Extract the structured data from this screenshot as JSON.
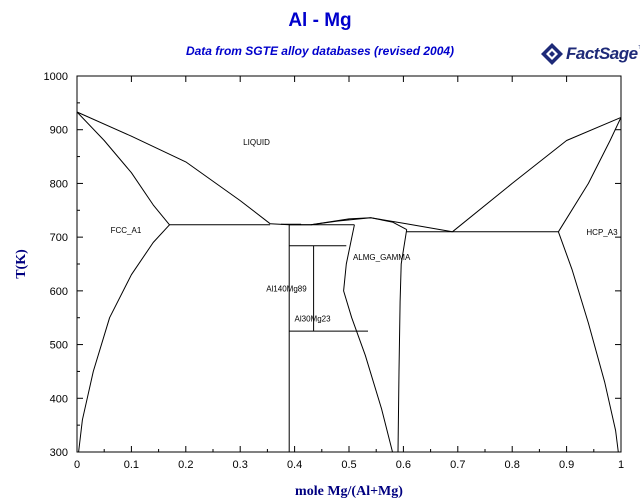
{
  "header": {
    "title": "Al - Mg",
    "subtitle": "Data from SGTE alloy databases (revised 2004)",
    "logo_text": "FactSage",
    "logo_sup": "™"
  },
  "colors": {
    "title": "#0000cc",
    "axis_label": "#000080",
    "lines": "#000000",
    "logo": "#1e2a78"
  },
  "chart_data": {
    "type": "line",
    "title": "Al - Mg",
    "subtitle": "Data from SGTE alloy databases (revised 2004)",
    "xlabel": "mole Mg/(Al+Mg)",
    "ylabel": "T(K)",
    "xlim": [
      0,
      1
    ],
    "ylim": [
      300,
      1000
    ],
    "xticks": [
      0,
      0.1,
      0.2,
      0.3,
      0.4,
      0.5,
      0.6,
      0.7,
      0.8,
      0.9,
      1
    ],
    "xtick_labels": [
      "0",
      "0.1",
      "0.2",
      "0.3",
      "0.4",
      "0.5",
      "0.6",
      "0.7",
      "0.8",
      "0.9",
      "1"
    ],
    "yticks": [
      300,
      400,
      500,
      600,
      700,
      800,
      900,
      1000
    ],
    "ytick_labels": [
      "300",
      "400",
      "500",
      "600",
      "700",
      "800",
      "900",
      "1000"
    ],
    "grid": false,
    "phase_labels": [
      {
        "text": "LIQUID",
        "x": 0.33,
        "y": 872
      },
      {
        "text": "FCC_A1",
        "x": 0.09,
        "y": 708
      },
      {
        "text": "HCP_A3",
        "x": 0.965,
        "y": 704
      },
      {
        "text": "ALMG_GAMMA",
        "x": 0.56,
        "y": 657
      },
      {
        "text": "Al140Mg89",
        "x": 0.385,
        "y": 599
      },
      {
        "text": "Al30Mg23",
        "x": 0.433,
        "y": 543
      }
    ],
    "series": [
      {
        "values": [
          [
            0,
            933
          ],
          [
            0.05,
            880
          ],
          [
            0.1,
            820
          ],
          [
            0.14,
            760
          ],
          [
            0.17,
            723
          ]
        ]
      },
      {
        "values": [
          [
            0,
            933
          ],
          [
            0.1,
            888
          ],
          [
            0.2,
            840
          ],
          [
            0.3,
            768
          ],
          [
            0.355,
            725
          ]
        ]
      },
      {
        "values": [
          [
            0.17,
            723
          ],
          [
            0.14,
            690
          ],
          [
            0.1,
            630
          ],
          [
            0.06,
            550
          ],
          [
            0.03,
            450
          ],
          [
            0.01,
            360
          ],
          [
            0.003,
            300
          ]
        ]
      },
      {
        "values": [
          [
            0.17,
            723
          ],
          [
            0.355,
            723
          ]
        ]
      },
      {
        "values": [
          [
            0.375,
            724
          ],
          [
            0.412,
            724
          ]
        ]
      },
      {
        "values": [
          [
            0.355,
            725
          ],
          [
            0.39,
            723
          ],
          [
            0.43,
            723
          ],
          [
            0.48,
            730
          ],
          [
            0.54,
            736
          ],
          [
            0.6,
            726
          ],
          [
            0.69,
            710
          ]
        ]
      },
      {
        "values": [
          [
            0.43,
            723
          ],
          [
            0.5,
            734
          ],
          [
            0.54,
            736
          ],
          [
            0.58,
            728
          ],
          [
            0.606,
            714
          ]
        ]
      },
      {
        "values": [
          [
            0.39,
            723
          ],
          [
            0.51,
            723
          ]
        ]
      },
      {
        "values": [
          [
            0.39,
            723
          ],
          [
            0.39,
            300
          ]
        ]
      },
      {
        "values": [
          [
            0.39,
            684
          ],
          [
            0.495,
            684
          ]
        ]
      },
      {
        "values": [
          [
            0.435,
            684
          ],
          [
            0.435,
            525
          ]
        ]
      },
      {
        "values": [
          [
            0.39,
            525
          ],
          [
            0.535,
            525
          ]
        ]
      },
      {
        "values": [
          [
            0.51,
            723
          ],
          [
            0.495,
            650
          ],
          [
            0.49,
            600
          ],
          [
            0.505,
            550
          ],
          [
            0.53,
            480
          ],
          [
            0.56,
            380
          ],
          [
            0.58,
            300
          ]
        ]
      },
      {
        "values": [
          [
            0.606,
            714
          ],
          [
            0.596,
            650
          ],
          [
            0.594,
            580
          ],
          [
            0.592,
            450
          ],
          [
            0.59,
            300
          ]
        ]
      },
      {
        "values": [
          [
            0.606,
            710
          ],
          [
            0.885,
            710
          ]
        ]
      },
      {
        "values": [
          [
            0.69,
            710
          ],
          [
            0.8,
            800
          ],
          [
            0.9,
            880
          ],
          [
            1,
            923
          ]
        ]
      },
      {
        "values": [
          [
            0.885,
            710
          ],
          [
            0.94,
            800
          ],
          [
            0.98,
            880
          ],
          [
            1,
            923
          ]
        ]
      },
      {
        "values": [
          [
            0.885,
            710
          ],
          [
            0.91,
            640
          ],
          [
            0.94,
            540
          ],
          [
            0.97,
            430
          ],
          [
            0.99,
            340
          ],
          [
            0.995,
            300
          ]
        ]
      }
    ]
  }
}
